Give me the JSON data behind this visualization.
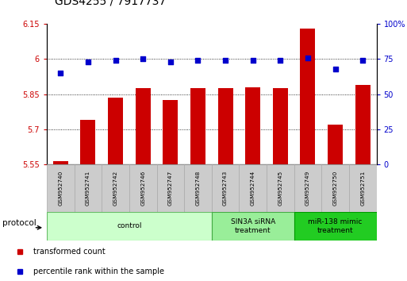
{
  "title": "GDS4255 / 7917737",
  "samples": [
    "GSM952740",
    "GSM952741",
    "GSM952742",
    "GSM952746",
    "GSM952747",
    "GSM952748",
    "GSM952743",
    "GSM952744",
    "GSM952745",
    "GSM952749",
    "GSM952750",
    "GSM952751"
  ],
  "bar_values": [
    5.565,
    5.74,
    5.835,
    5.875,
    5.825,
    5.875,
    5.875,
    5.878,
    5.875,
    6.13,
    5.72,
    5.89
  ],
  "dot_values": [
    65,
    73,
    74,
    75,
    73,
    74,
    74,
    74,
    74,
    76,
    68,
    74
  ],
  "bar_color": "#cc0000",
  "dot_color": "#0000cc",
  "ylim_left": [
    5.55,
    6.15
  ],
  "ylim_right": [
    0,
    100
  ],
  "yticks_left": [
    5.55,
    5.7,
    5.85,
    6.0,
    6.15
  ],
  "yticks_left_labels": [
    "5.55",
    "5.7",
    "5.85",
    "6",
    "6.15"
  ],
  "yticks_right": [
    0,
    25,
    50,
    75,
    100
  ],
  "yticks_right_labels": [
    "0",
    "25",
    "50",
    "75",
    "100%"
  ],
  "grid_lines": [
    5.7,
    5.85,
    6.0
  ],
  "protocol_groups": [
    {
      "label": "control",
      "start": 0,
      "end": 5,
      "color": "#ccffcc",
      "edge_color": "#66bb66"
    },
    {
      "label": "SIN3A siRNA\ntreatment",
      "start": 6,
      "end": 8,
      "color": "#99ee99",
      "edge_color": "#44aa44"
    },
    {
      "label": "miR-138 mimic\ntreatment",
      "start": 9,
      "end": 11,
      "color": "#22cc22",
      "edge_color": "#009900"
    }
  ],
  "legend_items": [
    {
      "label": "transformed count",
      "color": "#cc0000"
    },
    {
      "label": "percentile rank within the sample",
      "color": "#0000cc"
    }
  ],
  "protocol_label": "protocol",
  "figsize": [
    5.13,
    3.54
  ],
  "dpi": 100
}
